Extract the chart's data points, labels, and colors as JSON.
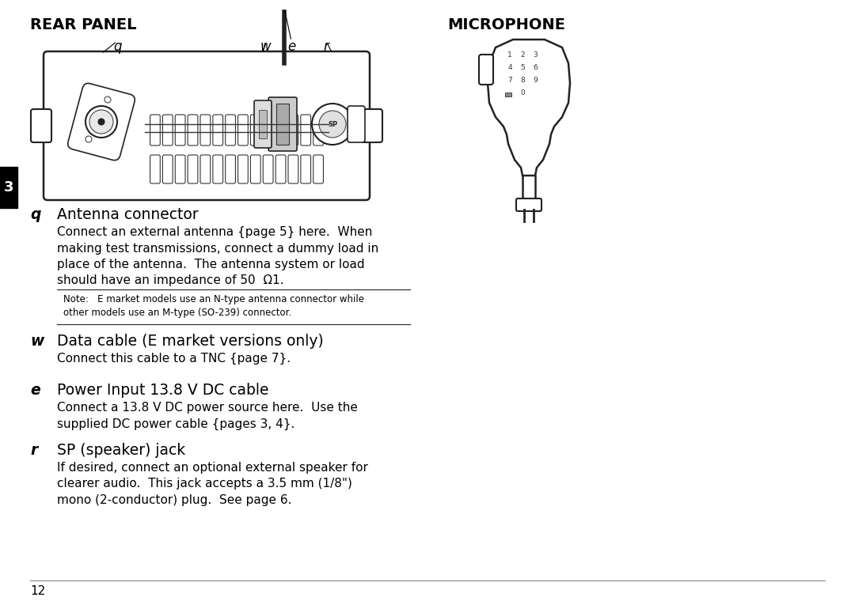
{
  "bg_color": "#ffffff",
  "text_color": "#000000",
  "title_left": "REAR PANEL",
  "title_right": "MICROPHONE",
  "section_3_label": "3",
  "note_text": "Note:   E market models use an N-type antenna connector while\nother models use an M-type (SO-239) connector.",
  "page_number": "12",
  "q_heading": "Antenna connector",
  "q_body1": "Connect an external antenna {page 5} here.  When",
  "q_body2": "making test transmissions, connect a dummy load in",
  "q_body3": "place of the antenna.  The antenna system or load",
  "q_body4": "should have an impedance of 50  Ω1.",
  "w_heading": "Data cable (E market versions only)",
  "w_body": "Connect this cable to a TNC {page 7}.",
  "e_heading": "Power Input 13.8 V DC cable",
  "e_body1": "Connect a 13.8 V DC power source here.  Use the",
  "e_body2": "supplied DC power cable {pages 3, 4}.",
  "r_heading": "SP (speaker) jack",
  "r_body1": "If desired, connect an optional external speaker for",
  "r_body2": "clearer audio.  This jack accepts a 3.5 mm (1/8\")",
  "r_body3": "mono (2-conductor) plug.  See page 6.",
  "panel_bg": "#f8f8f8",
  "panel_edge": "#222222"
}
